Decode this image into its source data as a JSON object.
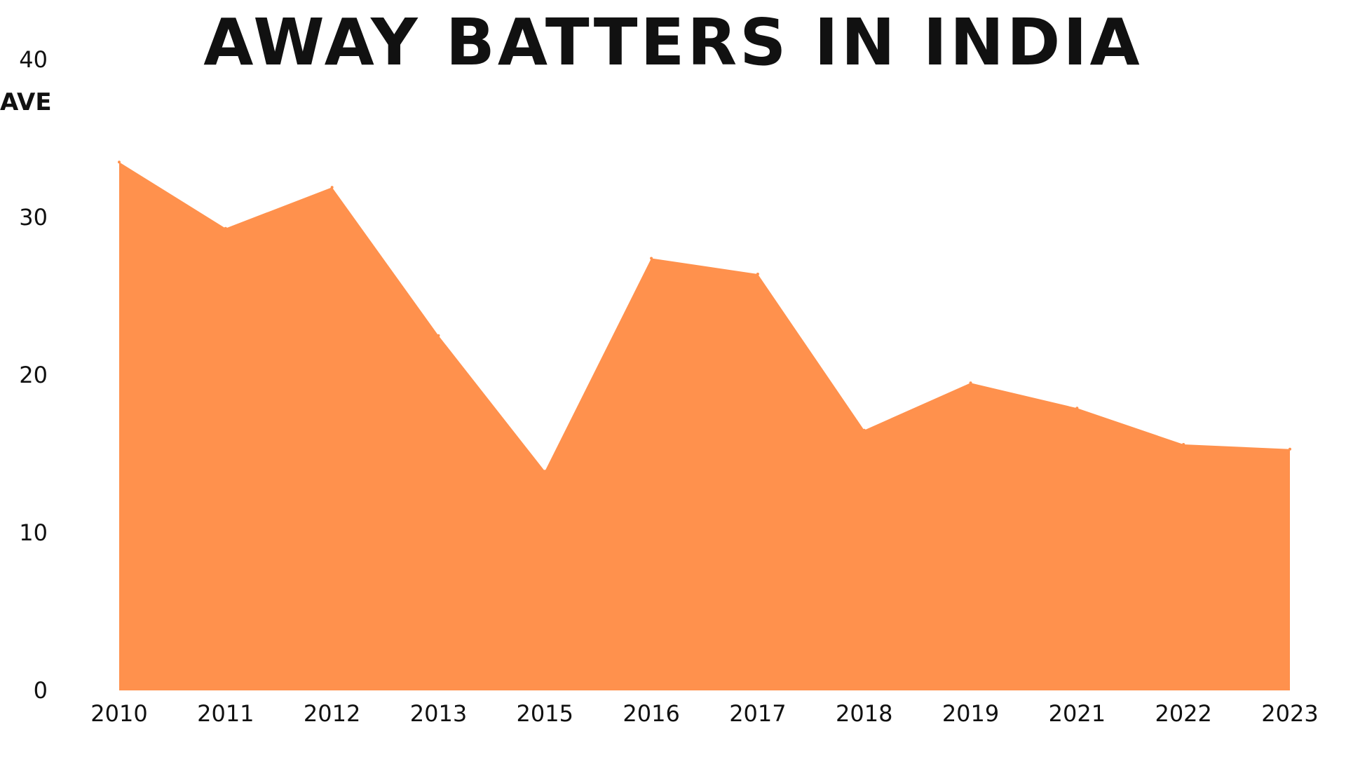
{
  "chart_data": {
    "type": "area",
    "title": "AWAY BATTERS IN INDIA",
    "xlabel": "",
    "ylabel": "AVE",
    "categories": [
      "2010",
      "2011",
      "2012",
      "2013",
      "2015",
      "2016",
      "2017",
      "2018",
      "2019",
      "2021",
      "2022",
      "2023"
    ],
    "values": [
      33.5,
      29.3,
      31.9,
      22.5,
      13.9,
      27.4,
      26.4,
      16.5,
      19.5,
      17.9,
      15.6,
      15.3
    ],
    "ylim": [
      0,
      40
    ],
    "yticks": [
      0,
      10,
      20,
      30,
      40
    ],
    "grid": false,
    "fill_color": "#ff914d"
  }
}
